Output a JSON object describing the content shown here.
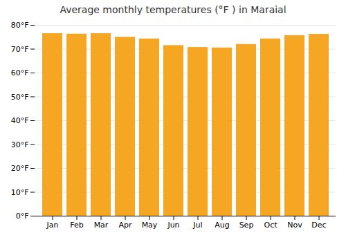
{
  "chart_data": {
    "type": "bar",
    "title": "Average monthly temperatures (°F ) in Maraial",
    "categories": [
      "Jan",
      "Feb",
      "Mar",
      "Apr",
      "May",
      "Jun",
      "Jul",
      "Aug",
      "Sep",
      "Oct",
      "Nov",
      "Dec"
    ],
    "values": [
      76.5,
      76.3,
      76.5,
      75.0,
      74.3,
      71.5,
      70.7,
      70.5,
      72.0,
      74.3,
      75.7,
      76.2
    ],
    "color": "#F5A623",
    "ylim": [
      0,
      80
    ],
    "yticks": [
      {
        "value": 0,
        "label": "0°F"
      },
      {
        "value": 10,
        "label": "10°F"
      },
      {
        "value": 20,
        "label": "20°F"
      },
      {
        "value": 30,
        "label": "30°F"
      },
      {
        "value": 40,
        "label": "40°F"
      },
      {
        "value": 50,
        "label": "50°F"
      },
      {
        "value": 60,
        "label": "60°F"
      },
      {
        "value": 70,
        "label": "70°F"
      },
      {
        "value": 80,
        "label": "80°F"
      }
    ],
    "grid": true
  }
}
